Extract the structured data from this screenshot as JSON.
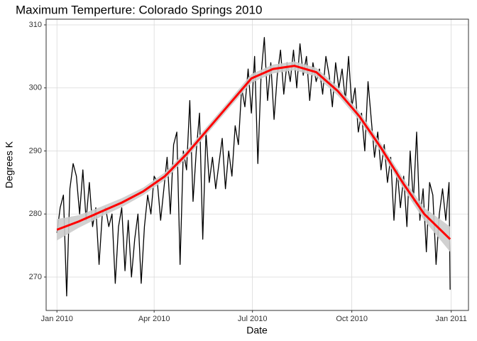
{
  "chart_data": {
    "type": "line",
    "title": "Maximum Temperture: Colorado Springs 2010",
    "xlabel": "Date",
    "ylabel": "Degrees K",
    "xlim": [
      -10,
      381
    ],
    "ylim": [
      264.7,
      310.9
    ],
    "xticks": [
      {
        "value": 0,
        "label": "Jan 2010"
      },
      {
        "value": 90,
        "label": "Apr 2010"
      },
      {
        "value": 181,
        "label": "Jul 2010"
      },
      {
        "value": 273,
        "label": "Oct 2010"
      },
      {
        "value": 365,
        "label": "Jan 2011"
      }
    ],
    "yticks": [
      270,
      280,
      290,
      300,
      310
    ],
    "grid": true,
    "series": [
      {
        "color": "#000000",
        "x": [
          0,
          3,
          6,
          9,
          12,
          15,
          18,
          21,
          24,
          27,
          30,
          33,
          36,
          39,
          42,
          45,
          48,
          51,
          54,
          57,
          60,
          63,
          66,
          69,
          72,
          75,
          78,
          81,
          84,
          87,
          90,
          93,
          96,
          99,
          102,
          105,
          108,
          111,
          114,
          117,
          120,
          123,
          126,
          129,
          132,
          135,
          138,
          141,
          144,
          147,
          150,
          153,
          156,
          159,
          162,
          165,
          168,
          171,
          174,
          177,
          180,
          183,
          186,
          189,
          192,
          195,
          198,
          201,
          204,
          207,
          210,
          213,
          216,
          219,
          222,
          225,
          228,
          231,
          234,
          237,
          240,
          243,
          246,
          249,
          252,
          255,
          258,
          261,
          264,
          267,
          270,
          273,
          276,
          279,
          282,
          285,
          288,
          291,
          294,
          297,
          300,
          303,
          306,
          309,
          312,
          315,
          318,
          321,
          324,
          327,
          330,
          333,
          336,
          339,
          342,
          345,
          348,
          351,
          354,
          357,
          360,
          363,
          364
        ],
        "values": [
          277,
          281,
          283,
          267,
          284,
          288,
          286,
          280,
          287,
          279,
          285,
          278,
          281,
          272,
          280,
          281,
          278,
          280,
          269,
          278,
          281,
          271,
          279,
          270,
          276,
          280,
          269,
          278,
          283,
          280,
          286,
          285,
          279,
          284,
          289,
          280,
          291,
          293,
          272,
          290,
          287,
          298,
          282,
          290,
          296,
          276,
          293,
          285,
          289,
          284,
          288,
          292,
          284,
          290,
          286,
          294,
          291,
          300,
          297,
          303,
          296,
          305,
          288,
          302,
          308,
          298,
          304,
          295,
          302,
          306,
          299,
          304,
          301,
          306,
          300,
          307,
          302,
          305,
          298,
          304,
          301,
          303,
          299,
          305,
          302,
          297,
          304,
          300,
          303,
          298,
          305,
          297,
          300,
          293,
          296,
          290,
          301,
          295,
          289,
          293,
          287,
          291,
          285,
          289,
          279,
          287,
          281,
          286,
          278,
          290,
          282,
          293,
          279,
          284,
          274,
          285,
          283,
          272,
          280,
          284,
          279,
          285,
          268
        ]
      },
      {
        "color": "#ff0000",
        "band_color": "#cccccc",
        "x": [
          0,
          20,
          40,
          60,
          80,
          100,
          120,
          140,
          160,
          180,
          200,
          220,
          240,
          260,
          280,
          300,
          320,
          340,
          364
        ],
        "values": [
          277.5,
          278.8,
          280.3,
          281.8,
          283.6,
          286,
          289.5,
          293.5,
          297.5,
          301.5,
          303,
          303.5,
          302.5,
          299.5,
          295.5,
          290.5,
          285,
          280,
          276
        ],
        "lower": [
          275.8,
          277.8,
          279.5,
          281.1,
          283,
          285.4,
          288.9,
          292.9,
          296.9,
          300.8,
          302.3,
          302.8,
          301.8,
          298.8,
          294.8,
          289.8,
          284.2,
          279,
          274
        ],
        "upper": [
          279.2,
          279.8,
          281.1,
          282.5,
          284.2,
          286.6,
          290.1,
          294.1,
          298.1,
          302.2,
          303.7,
          304.2,
          303.2,
          300.2,
          296.2,
          291.2,
          285.8,
          281,
          278
        ]
      }
    ]
  }
}
